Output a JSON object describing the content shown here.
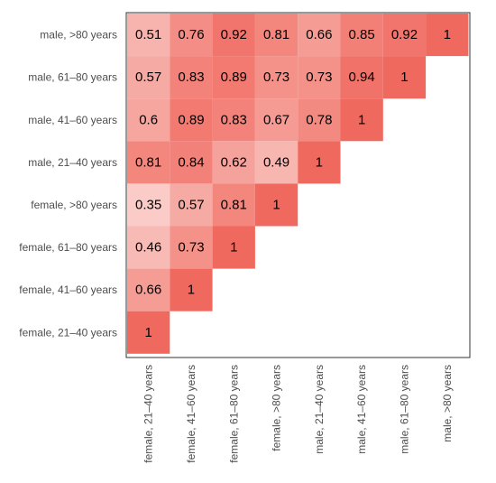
{
  "chart_data": {
    "type": "heatmap",
    "title": "",
    "xlabel": "",
    "ylabel": "",
    "x_categories": [
      "female, 21–40 years",
      "female, 41–60 years",
      "female, 61–80 years",
      "female, >80 years",
      "male, 21–40 years",
      "male, 41–60 years",
      "male, 61–80 years",
      "male, >80 years"
    ],
    "y_categories": [
      "male, >80 years",
      "male, 61–80 years",
      "male, 41–60 years",
      "male, 21–40 years",
      "female, >80 years",
      "female, 61–80 years",
      "female, 41–60 years",
      "female, 21–40 years"
    ],
    "values": [
      [
        "0.51",
        "0.76",
        "0.92",
        "0.81",
        "0.66",
        "0.85",
        "0.92",
        "1"
      ],
      [
        "0.57",
        "0.83",
        "0.89",
        "0.73",
        "0.73",
        "0.94",
        "1",
        null
      ],
      [
        "0.6",
        "0.89",
        "0.83",
        "0.67",
        "0.78",
        "1",
        null,
        null
      ],
      [
        "0.81",
        "0.84",
        "0.62",
        "0.49",
        "1",
        null,
        null,
        null
      ],
      [
        "0.35",
        "0.57",
        "0.81",
        "1",
        null,
        null,
        null,
        null
      ],
      [
        "0.46",
        "0.73",
        "1",
        null,
        null,
        null,
        null,
        null
      ],
      [
        "0.66",
        "1",
        null,
        null,
        null,
        null,
        null,
        null
      ],
      [
        "1",
        null,
        null,
        null,
        null,
        null,
        null,
        null
      ]
    ],
    "color_scale": {
      "low": "#ffffff",
      "high": "#f0695f"
    },
    "grid": false
  }
}
